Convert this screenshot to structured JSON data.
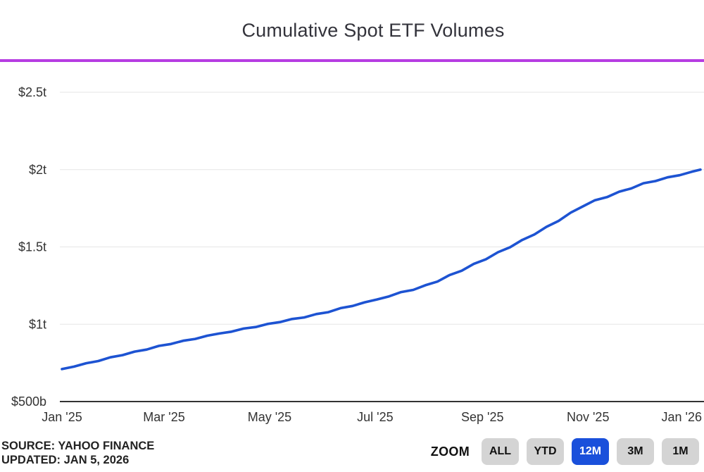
{
  "header": {
    "title": "Cumulative Spot ETF Volumes"
  },
  "accent_color": "#b63ce2",
  "footer": {
    "source_line1": "SOURCE: YAHOO FINANCE",
    "source_line2": "UPDATED: JAN 5, 2026"
  },
  "zoom_controls": {
    "label": "ZOOM",
    "buttons": [
      {
        "label": "ALL"
      },
      {
        "label": "YTD"
      },
      {
        "label": "12M"
      },
      {
        "label": "3M"
      },
      {
        "label": "1M"
      }
    ],
    "active_index": 2,
    "active_color": "#1a50db",
    "inactive_color": "#d4d4d4"
  },
  "chart_data": {
    "type": "line",
    "title": "Cumulative Spot ETF Volumes",
    "series_name": "Cumulative spot ETF volume",
    "unit": "USD billions",
    "line_color": "#1d53d2",
    "grid": true,
    "legend": "none",
    "x_range": [
      "2025-01-01",
      "2026-01-05"
    ],
    "ylim_billions": [
      500,
      2500
    ],
    "yticks": [
      {
        "label": "$2.5t",
        "value": 2500
      },
      {
        "label": "$2t",
        "value": 2000
      },
      {
        "label": "$1.5t",
        "value": 1500
      },
      {
        "label": "$1t",
        "value": 1000
      },
      {
        "label": "$500b",
        "value": 500
      }
    ],
    "xticks": [
      {
        "label": "Jan '25",
        "date": "2025-01-01"
      },
      {
        "label": "Mar '25",
        "date": "2025-03-01"
      },
      {
        "label": "May '25",
        "date": "2025-05-01"
      },
      {
        "label": "Jul '25",
        "date": "2025-07-01"
      },
      {
        "label": "Sep '25",
        "date": "2025-09-01"
      },
      {
        "label": "Nov '25",
        "date": "2025-11-01"
      },
      {
        "label": "Jan '26",
        "date": "2026-01-01"
      }
    ],
    "points": [
      {
        "date": "2025-01-01",
        "value": 710
      },
      {
        "date": "2025-01-08",
        "value": 726
      },
      {
        "date": "2025-01-15",
        "value": 748
      },
      {
        "date": "2025-01-22",
        "value": 762
      },
      {
        "date": "2025-01-29",
        "value": 786
      },
      {
        "date": "2025-02-05",
        "value": 800
      },
      {
        "date": "2025-02-12",
        "value": 823
      },
      {
        "date": "2025-02-19",
        "value": 836
      },
      {
        "date": "2025-02-26",
        "value": 860
      },
      {
        "date": "2025-03-05",
        "value": 872
      },
      {
        "date": "2025-03-12",
        "value": 893
      },
      {
        "date": "2025-03-19",
        "value": 905
      },
      {
        "date": "2025-03-26",
        "value": 926
      },
      {
        "date": "2025-04-02",
        "value": 940
      },
      {
        "date": "2025-04-09",
        "value": 952
      },
      {
        "date": "2025-04-16",
        "value": 972
      },
      {
        "date": "2025-04-23",
        "value": 982
      },
      {
        "date": "2025-04-30",
        "value": 1002
      },
      {
        "date": "2025-05-07",
        "value": 1014
      },
      {
        "date": "2025-05-14",
        "value": 1034
      },
      {
        "date": "2025-05-21",
        "value": 1044
      },
      {
        "date": "2025-05-28",
        "value": 1066
      },
      {
        "date": "2025-06-04",
        "value": 1078
      },
      {
        "date": "2025-06-11",
        "value": 1104
      },
      {
        "date": "2025-06-18",
        "value": 1118
      },
      {
        "date": "2025-06-25",
        "value": 1142
      },
      {
        "date": "2025-07-02",
        "value": 1160
      },
      {
        "date": "2025-07-09",
        "value": 1180
      },
      {
        "date": "2025-07-16",
        "value": 1208
      },
      {
        "date": "2025-07-23",
        "value": 1222
      },
      {
        "date": "2025-07-30",
        "value": 1252
      },
      {
        "date": "2025-08-06",
        "value": 1276
      },
      {
        "date": "2025-08-13",
        "value": 1318
      },
      {
        "date": "2025-08-20",
        "value": 1346
      },
      {
        "date": "2025-08-27",
        "value": 1390
      },
      {
        "date": "2025-09-03",
        "value": 1420
      },
      {
        "date": "2025-09-10",
        "value": 1466
      },
      {
        "date": "2025-09-17",
        "value": 1498
      },
      {
        "date": "2025-09-24",
        "value": 1545
      },
      {
        "date": "2025-10-01",
        "value": 1580
      },
      {
        "date": "2025-10-08",
        "value": 1630
      },
      {
        "date": "2025-10-15",
        "value": 1668
      },
      {
        "date": "2025-10-22",
        "value": 1722
      },
      {
        "date": "2025-10-29",
        "value": 1762
      },
      {
        "date": "2025-11-05",
        "value": 1802
      },
      {
        "date": "2025-11-12",
        "value": 1822
      },
      {
        "date": "2025-11-19",
        "value": 1857
      },
      {
        "date": "2025-11-26",
        "value": 1878
      },
      {
        "date": "2025-12-03",
        "value": 1912
      },
      {
        "date": "2025-12-10",
        "value": 1926
      },
      {
        "date": "2025-12-17",
        "value": 1950
      },
      {
        "date": "2025-12-24",
        "value": 1964
      },
      {
        "date": "2025-12-31",
        "value": 1986
      },
      {
        "date": "2026-01-05",
        "value": 2000
      }
    ]
  }
}
